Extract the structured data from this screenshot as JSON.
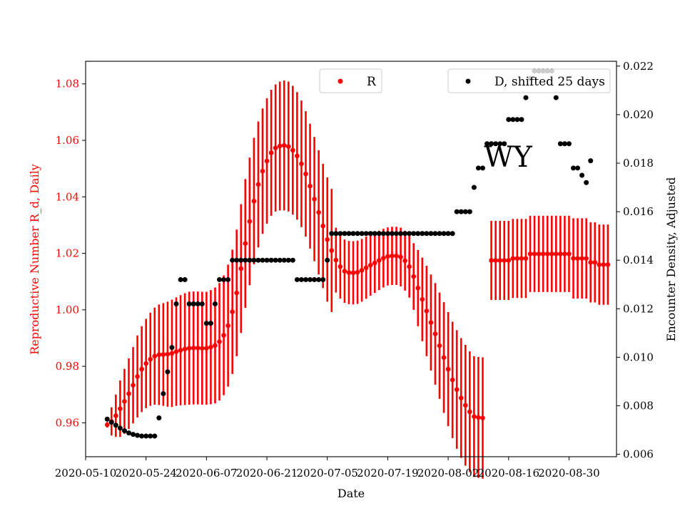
{
  "chart_data": {
    "type": "scatter",
    "annotation": "WY",
    "xlabel": "Date",
    "ylabel_left": "Reproductive Number R_d, Daily",
    "ylabel_right": "Encounter Density, Adjusted",
    "x_ticks": [
      "2020-05-10",
      "2020-05-24",
      "2020-06-07",
      "2020-06-21",
      "2020-07-05",
      "2020-07-19",
      "2020-08-02",
      "2020-08-16",
      "2020-08-30"
    ],
    "y_left_ticks": [
      "0.96",
      "0.98",
      "1.00",
      "1.02",
      "1.04",
      "1.06",
      "1.08"
    ],
    "y_right_ticks": [
      "0.006",
      "0.008",
      "0.010",
      "0.012",
      "0.014",
      "0.016",
      "0.018",
      "0.020",
      "0.022"
    ],
    "x_range": [
      "2020-05-10",
      "2020-09-10"
    ],
    "y_left_range": [
      0.948,
      1.088
    ],
    "y_right_range": [
      0.0059,
      0.0222
    ],
    "legend_left": {
      "label": "R",
      "color": "#ff0000",
      "placement": "top-center"
    },
    "legend_right": {
      "label": "D, shifted 25 days",
      "color": "#000000",
      "placement": "top-right"
    },
    "series": [
      {
        "name": "R",
        "axis": "left",
        "color": "#ff0000",
        "start_date": "2020-05-15",
        "r": [
          0.9593,
          0.9605,
          0.9625,
          0.965,
          0.9676,
          0.9703,
          0.9733,
          0.9764,
          0.979,
          0.981,
          0.9825,
          0.9836,
          0.9841,
          0.9842,
          0.9843,
          0.9846,
          0.9852,
          0.9857,
          0.9861,
          0.9864,
          0.9865,
          0.9865,
          0.9864,
          0.9864,
          0.9868,
          0.9874,
          0.9887,
          0.991,
          0.9944,
          0.9993,
          1.006,
          1.0146,
          1.0235,
          1.0313,
          1.0385,
          1.0444,
          1.0491,
          1.0527,
          1.0556,
          1.0573,
          1.058,
          1.0582,
          1.0578,
          1.0565,
          1.0545,
          1.0517,
          1.0481,
          1.0438,
          1.0392,
          1.0345,
          1.0297,
          1.0249,
          1.021,
          1.0176,
          1.0153,
          1.0137,
          1.0132,
          1.0131,
          1.0133,
          1.014,
          1.0149,
          1.0158,
          1.0166,
          1.0175,
          1.0183,
          1.0189,
          1.0191,
          1.0191,
          1.0187,
          1.0174,
          1.0153,
          1.0118,
          1.0077,
          1.0037,
          0.9996,
          0.9955,
          0.9915,
          0.9873,
          0.9831,
          0.979,
          0.9752,
          0.9718,
          0.9688,
          0.9662,
          0.9639,
          0.9622,
          0.9619,
          0.9617,
          null,
          1.0175,
          1.0175,
          1.0175,
          1.0175,
          1.0175,
          1.0182,
          1.0182,
          1.0182,
          1.0182,
          1.0198,
          1.0198,
          1.0198,
          1.0198,
          1.0198,
          1.0198,
          1.0198,
          1.0198,
          1.0198,
          1.0198,
          1.0182,
          1.0182,
          1.0182,
          1.0182,
          1.0168,
          1.0168,
          1.016,
          1.016,
          1.016
        ],
        "err": [
          0.001,
          0.005,
          0.0075,
          0.01,
          0.0115,
          0.0125,
          0.0135,
          0.0145,
          0.0152,
          0.0158,
          0.0165,
          0.0172,
          0.0178,
          0.0182,
          0.0186,
          0.019,
          0.0192,
          0.0195,
          0.0198,
          0.02,
          0.02,
          0.02,
          0.02,
          0.02,
          0.0202,
          0.0205,
          0.0208,
          0.0212,
          0.0216,
          0.022,
          0.0224,
          0.0228,
          0.0228,
          0.0226,
          0.0224,
          0.0223,
          0.0222,
          0.0222,
          0.0223,
          0.0225,
          0.0228,
          0.023,
          0.023,
          0.0228,
          0.0226,
          0.0224,
          0.0222,
          0.0221,
          0.022,
          0.022,
          0.022,
          0.022,
          0.0218,
          0.0115,
          0.0113,
          0.0112,
          0.0112,
          0.0112,
          0.0112,
          0.0111,
          0.011,
          0.0108,
          0.0106,
          0.0105,
          0.0104,
          0.0103,
          0.0103,
          0.0103,
          0.0104,
          0.0106,
          0.011,
          0.0118,
          0.0135,
          0.0148,
          0.016,
          0.017,
          0.018,
          0.0188,
          0.0196,
          0.0202,
          0.0206,
          0.021,
          0.0212,
          0.0214,
          0.0214,
          0.0214,
          0.0214,
          0.0215,
          null,
          0.014,
          0.014,
          0.014,
          0.014,
          0.014,
          0.014,
          0.014,
          0.014,
          0.014,
          0.0135,
          0.0135,
          0.0135,
          0.0135,
          0.0135,
          0.0135,
          0.0135,
          0.0135,
          0.0135,
          0.0135,
          0.0142,
          0.0142,
          0.0142,
          0.0142,
          0.0142,
          0.0142,
          0.0142,
          0.0142,
          0.0142
        ]
      },
      {
        "name": "D, shifted 25 days",
        "axis": "right",
        "color": "#000000",
        "start_date": "2020-05-15",
        "values": [
          0.00745,
          0.00732,
          0.0072,
          0.00708,
          0.00697,
          0.00688,
          0.00682,
          0.00678,
          0.00675,
          0.00675,
          0.00675,
          0.00675,
          0.0075,
          0.0085,
          0.0094,
          0.0104,
          0.0122,
          0.0132,
          0.0132,
          0.0122,
          0.0122,
          0.0122,
          0.0122,
          0.0114,
          0.0114,
          0.0122,
          0.0132,
          0.0132,
          0.0132,
          0.014,
          0.014,
          0.014,
          0.014,
          0.014,
          0.014,
          0.014,
          0.014,
          0.014,
          0.014,
          0.014,
          0.014,
          0.014,
          0.014,
          0.014,
          0.0132,
          0.0132,
          0.0132,
          0.0132,
          0.0132,
          0.0132,
          0.0132,
          0.014,
          0.0151,
          0.0151,
          0.0151,
          0.0151,
          0.0151,
          0.0151,
          0.0151,
          0.0151,
          0.0151,
          0.0151,
          0.0151,
          0.0151,
          0.0151,
          0.0151,
          0.0151,
          0.0151,
          0.0151,
          0.0151,
          0.0151,
          0.0151,
          0.0151,
          0.0151,
          0.0151,
          0.0151,
          0.0151,
          0.0151,
          0.0151,
          0.0151,
          0.0151,
          0.016,
          0.016,
          0.016,
          0.016,
          0.017,
          0.0178,
          0.0178,
          0.0188,
          0.0188,
          0.0188,
          0.0188,
          0.0188,
          0.0198,
          0.0198,
          0.0198,
          0.0198,
          0.0207,
          0.0215,
          0.0218,
          0.0218,
          0.0218,
          0.0218,
          0.0218,
          0.0207,
          0.0188,
          0.0188,
          0.0188,
          0.0178,
          0.0178,
          0.0175,
          0.0172,
          0.0181
        ]
      }
    ]
  }
}
